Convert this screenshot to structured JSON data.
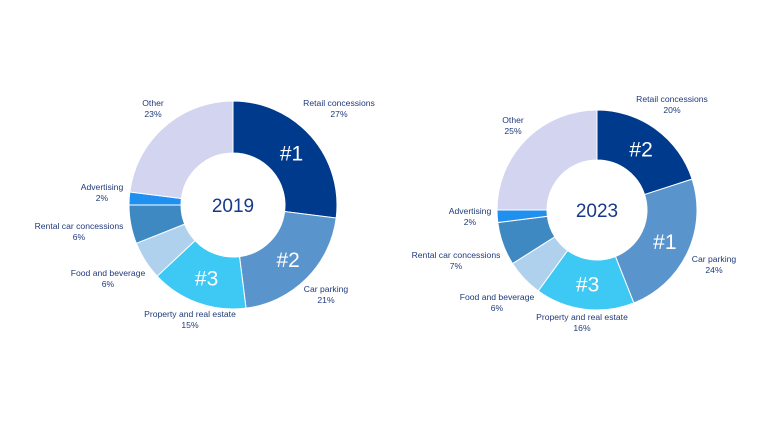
{
  "chart_data": [
    {
      "type": "pie",
      "title": "",
      "center_label": "2019",
      "slices": [
        {
          "name": "Retail concessions",
          "value": 27,
          "value_label": "27%",
          "color": "#003a8c",
          "rank": "#1"
        },
        {
          "name": "Car parking",
          "value": 21,
          "value_label": "21%",
          "color": "#5a94cc",
          "rank": "#2"
        },
        {
          "name": "Property and real estate",
          "value": 15,
          "value_label": "15%",
          "color": "#3ec8f4",
          "rank": "#3"
        },
        {
          "name": "Food and beverage",
          "value": 6,
          "value_label": "6%",
          "color": "#b0d1ee",
          "rank": ""
        },
        {
          "name": "Rental car concessions",
          "value": 6,
          "value_label": "6%",
          "color": "#3f89c2",
          "rank": ""
        },
        {
          "name": "Advertising",
          "value": 2,
          "value_label": "2%",
          "color": "#1f8ff0",
          "rank": ""
        },
        {
          "name": "Other",
          "value": 23,
          "value_label": "23%",
          "color": "#d2d4f0",
          "rank": ""
        }
      ]
    },
    {
      "type": "pie",
      "title": "",
      "center_label": "2023",
      "slices": [
        {
          "name": "Retail concessions",
          "value": 20,
          "value_label": "20%",
          "color": "#003a8c",
          "rank": "#2"
        },
        {
          "name": "Car parking",
          "value": 24,
          "value_label": "24%",
          "color": "#5a94cc",
          "rank": "#1"
        },
        {
          "name": "Property and real estate",
          "value": 16,
          "value_label": "16%",
          "color": "#3ec8f4",
          "rank": "#3"
        },
        {
          "name": "Food and beverage",
          "value": 6,
          "value_label": "6%",
          "color": "#b0d1ee",
          "rank": ""
        },
        {
          "name": "Rental car concessions",
          "value": 7,
          "value_label": "7%",
          "color": "#3f89c2",
          "rank": ""
        },
        {
          "name": "Advertising",
          "value": 2,
          "value_label": "2%",
          "color": "#1f8ff0",
          "rank": ""
        },
        {
          "name": "Other",
          "value": 25,
          "value_label": "25%",
          "color": "#d2d4f0",
          "rank": ""
        }
      ]
    }
  ]
}
